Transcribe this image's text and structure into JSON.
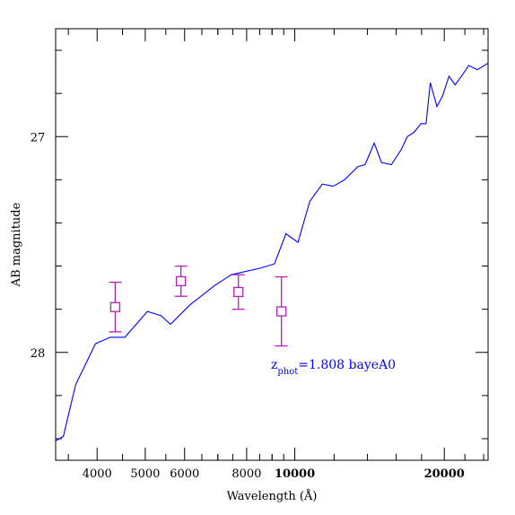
{
  "chart_data": {
    "type": "line",
    "title": "",
    "xlabel": "Wavelength (Å)",
    "ylabel": "AB magnitude",
    "x_scale": "log",
    "xlim": [
      3300,
      24500
    ],
    "ylim": [
      28.5,
      26.5
    ],
    "x_tick_labels": [
      "4000",
      "5000",
      "6000",
      "8000",
      "10000",
      "20000"
    ],
    "x_tick_values": [
      4000,
      5000,
      6000,
      8000,
      10000,
      20000
    ],
    "x_bold_tick_labels": [
      "10000",
      "20000"
    ],
    "y_tick_labels": [
      "27",
      "28"
    ],
    "y_tick_values": [
      27,
      28
    ],
    "grid": false,
    "annotation": {
      "z_main": "z",
      "z_sub": "phot",
      "text": "=1.808 bayeA0",
      "color": "#0000ff"
    },
    "series": [
      {
        "kind": "model-sed",
        "color": "#0000ff",
        "x": [
          3300,
          3420,
          3620,
          3970,
          4250,
          4550,
          5050,
          5380,
          5620,
          6150,
          6900,
          7450,
          8500,
          9100,
          9600,
          10150,
          10720,
          11360,
          11950,
          12600,
          13380,
          13850,
          14450,
          14950,
          15650,
          16380,
          16850,
          17390,
          17950,
          18380,
          18740,
          19330,
          19850,
          20440,
          21030,
          21650,
          22400,
          23300,
          24500
        ],
        "y": [
          28.41,
          28.39,
          28.15,
          27.96,
          27.93,
          27.93,
          27.81,
          27.83,
          27.87,
          27.78,
          27.69,
          27.64,
          27.61,
          27.59,
          27.45,
          27.49,
          27.3,
          27.22,
          27.23,
          27.2,
          27.14,
          27.13,
          27.03,
          27.12,
          27.13,
          27.06,
          27.0,
          26.98,
          26.94,
          26.94,
          26.75,
          26.86,
          26.81,
          26.72,
          26.76,
          26.72,
          26.67,
          26.69,
          26.66
        ]
      },
      {
        "kind": "photometry",
        "color": "#b51fb5",
        "x": [
          4350,
          5900,
          7700,
          9400
        ],
        "y": [
          27.79,
          27.67,
          27.72,
          27.81
        ],
        "yerr_low": [
          0.115,
          0.07,
          0.08,
          0.16
        ],
        "yerr_high": [
          0.115,
          0.07,
          0.08,
          0.16
        ]
      }
    ]
  }
}
